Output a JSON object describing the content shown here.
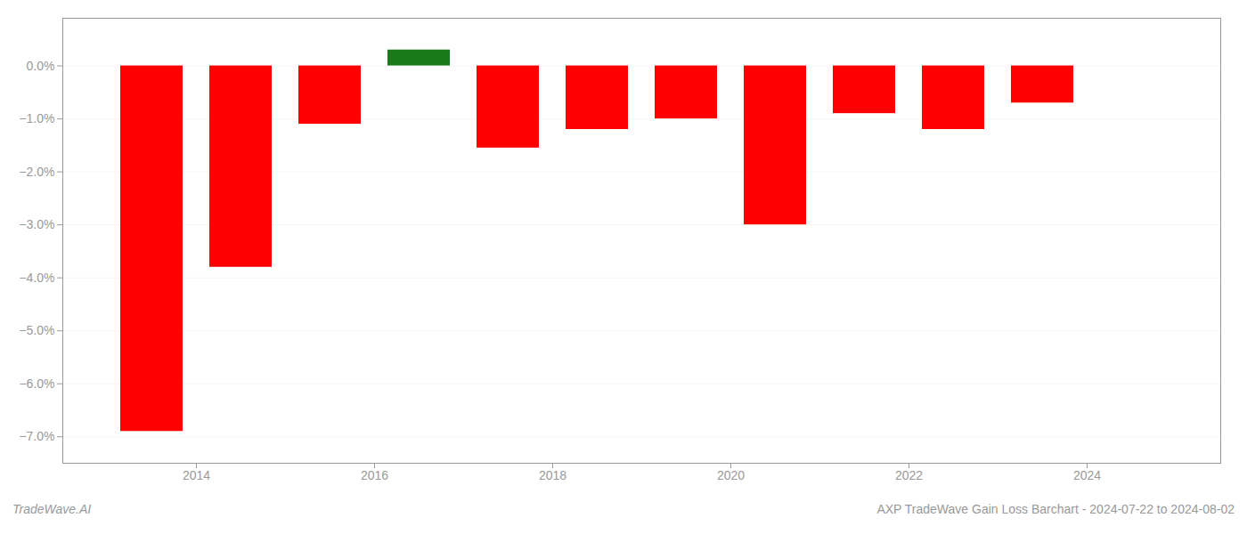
{
  "chart_data": {
    "type": "bar",
    "x": [
      2013.5,
      2014.5,
      2015.5,
      2016.5,
      2017.5,
      2018.5,
      2019.5,
      2020.5,
      2021.5,
      2022.5,
      2023.5
    ],
    "values": [
      -0.069,
      -0.038,
      -0.011,
      0.003,
      -0.0155,
      -0.012,
      -0.01,
      -0.03,
      -0.009,
      -0.012,
      -0.007
    ],
    "colors": [
      "#ff0000",
      "#ff0000",
      "#ff0000",
      "#1a7a1a",
      "#ff0000",
      "#ff0000",
      "#ff0000",
      "#ff0000",
      "#ff0000",
      "#ff0000",
      "#ff0000"
    ],
    "xlim": [
      2012.5,
      2025.5
    ],
    "xticks": [
      2014,
      2016,
      2018,
      2020,
      2022,
      2024
    ],
    "ylim": [
      -0.075,
      0.009
    ],
    "yticks": [
      {
        "value": 0.0,
        "label": "0.0%"
      },
      {
        "value": -0.01,
        "label": "−1.0%"
      },
      {
        "value": -0.02,
        "label": "−2.0%"
      },
      {
        "value": -0.03,
        "label": "−3.0%"
      },
      {
        "value": -0.04,
        "label": "−4.0%"
      },
      {
        "value": -0.05,
        "label": "−5.0%"
      },
      {
        "value": -0.06,
        "label": "−6.0%"
      },
      {
        "value": -0.07,
        "label": "−7.0%"
      }
    ],
    "grid": true,
    "annotations": [
      "TradeWave.AI",
      "AXP TradeWave Gain Loss Barchart - 2024-07-22 to 2024-08-02"
    ]
  }
}
